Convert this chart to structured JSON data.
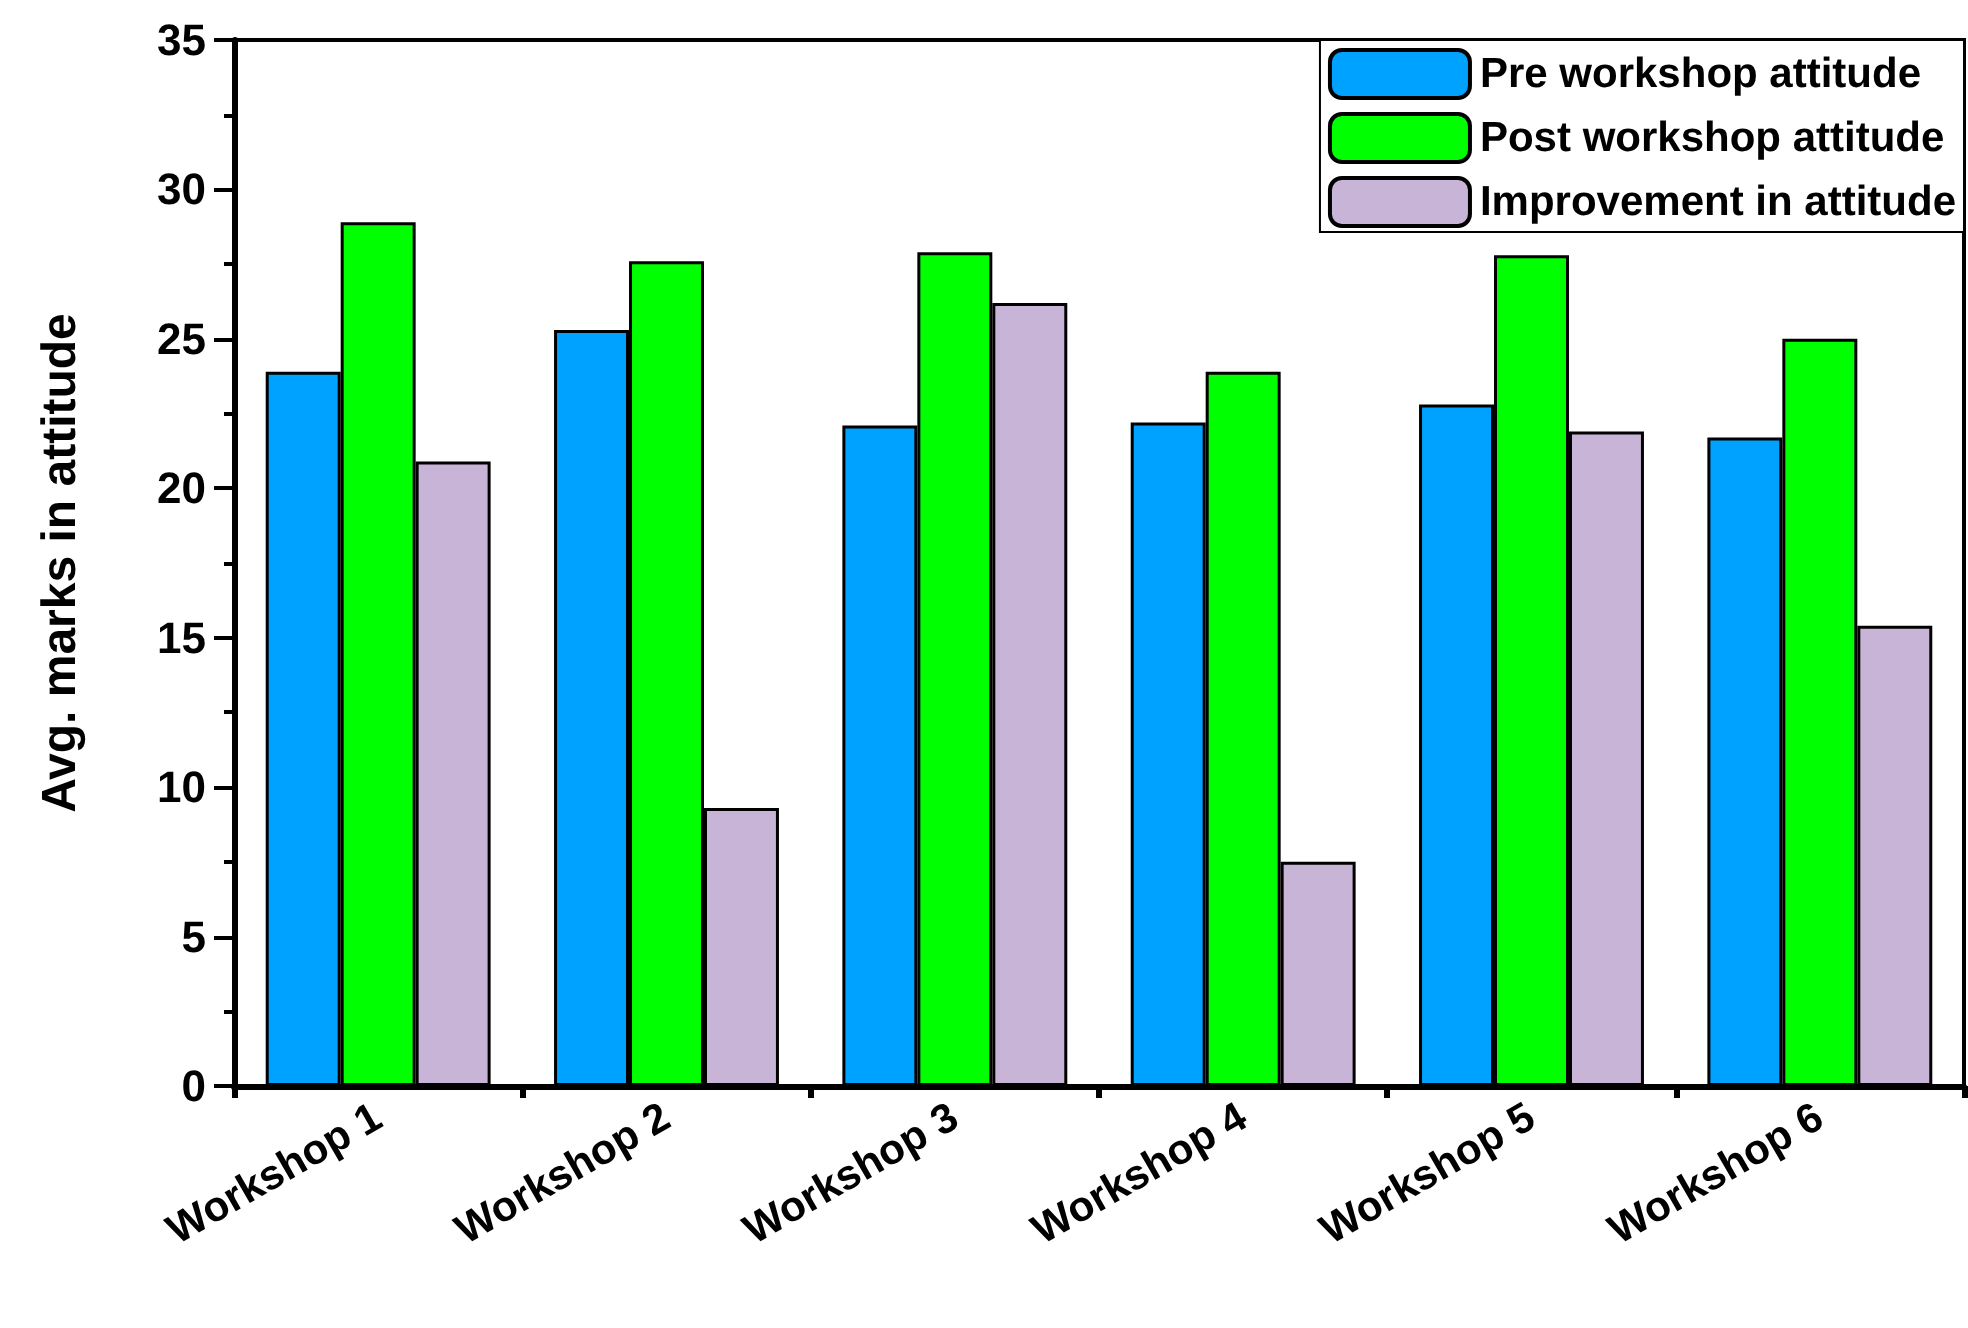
{
  "chart_data": {
    "type": "bar",
    "ylabel": "Avg. marks in attitude",
    "categories": [
      "Workshop 1",
      "Workshop 2",
      "Workshop 3",
      "Workshop 4",
      "Workshop 5",
      "Workshop 6"
    ],
    "series": [
      {
        "name": "Pre workshop attitude",
        "color": "#00a2ff",
        "values": [
          23.9,
          25.3,
          22.1,
          22.2,
          22.8,
          21.7
        ]
      },
      {
        "name": "Post workshop attitude",
        "color": "#00ff00",
        "values": [
          28.9,
          27.6,
          27.9,
          23.9,
          27.8,
          25.0
        ]
      },
      {
        "name": "Improvement in attitude",
        "color": "#c8b4d6",
        "values": [
          20.9,
          9.3,
          26.2,
          7.5,
          21.9,
          15.4
        ]
      }
    ],
    "ylim": [
      0,
      35
    ],
    "yticks": [
      0,
      5,
      10,
      15,
      20,
      25,
      30,
      35
    ],
    "grid": false,
    "legend": "top right"
  }
}
